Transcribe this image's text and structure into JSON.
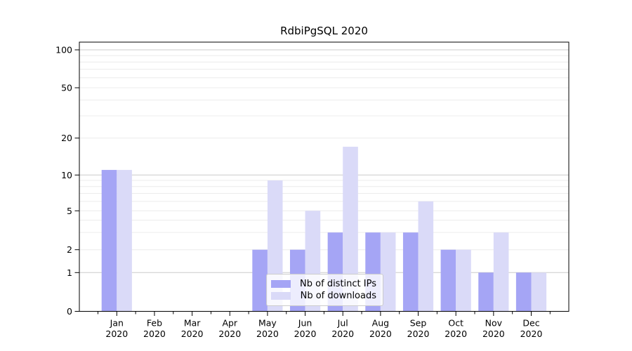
{
  "chart_data": {
    "type": "bar",
    "title": "RdbiPgSQL 2020",
    "months": [
      "Jan",
      "Feb",
      "Mar",
      "Apr",
      "May",
      "Jun",
      "Jul",
      "Aug",
      "Sep",
      "Oct",
      "Nov",
      "Dec"
    ],
    "year_label": "2020",
    "categories": [
      "Jan 2020",
      "Feb 2020",
      "Mar 2020",
      "Apr 2020",
      "May 2020",
      "Jun 2020",
      "Jul 2020",
      "Aug 2020",
      "Sep 2020",
      "Oct 2020",
      "Nov 2020",
      "Dec 2020"
    ],
    "series": [
      {
        "name": "Nb of distinct IPs",
        "color": "#a5a5f5",
        "values": [
          11,
          0,
          0,
          0,
          2,
          2,
          3,
          3,
          3,
          2,
          1,
          1
        ]
      },
      {
        "name": "Nb of downloads",
        "color": "#dadaf8",
        "values": [
          11,
          0,
          0,
          0,
          9,
          5,
          17,
          3,
          6,
          2,
          3,
          1
        ]
      }
    ],
    "y_ticks": [
      0,
      1,
      2,
      5,
      10,
      20,
      50,
      100
    ],
    "y_minor_gridlines": [
      2,
      3,
      4,
      5,
      6,
      7,
      8,
      9,
      20,
      30,
      40,
      50,
      60,
      70,
      80,
      90
    ],
    "y_major_gridlines": [
      1,
      10,
      100
    ],
    "ylim": [
      0,
      100
    ],
    "y_scale": "log (linear segment 0-1)",
    "xlabel": "",
    "ylabel": "",
    "grid": "on",
    "legend_position": "lower center inside plot",
    "colors": {
      "bar_dark": "#a5a5f5",
      "bar_light": "#dadaf8",
      "gridline_minor": "#ececec",
      "gridline_major": "#cccccc",
      "axis": "#000000",
      "text": "#000000",
      "legend_border": "#cccccc"
    }
  },
  "legend": {
    "items": [
      {
        "label": "Nb of distinct IPs"
      },
      {
        "label": "Nb of downloads"
      }
    ]
  }
}
